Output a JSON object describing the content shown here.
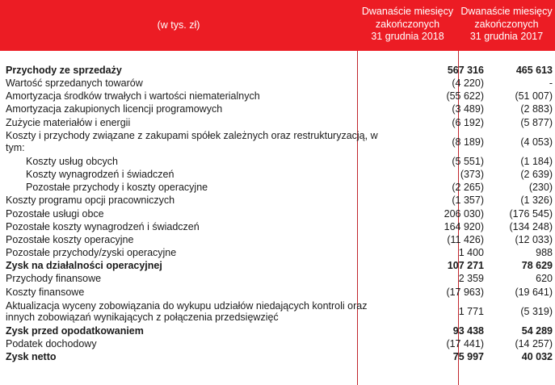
{
  "header": {
    "unit": "(w tys. zł)",
    "col1": [
      "Dwanaście miesięcy",
      "zakończonych",
      "31 grudnia 2018"
    ],
    "col2": [
      "Dwanaście miesięcy",
      "zakończonych",
      "31 grudnia 2017"
    ]
  },
  "rows": [
    {
      "label": "Przychody ze sprzedaży",
      "v2018": "567 316",
      "v2017": "465 613",
      "bold": true
    },
    {
      "label": "Wartość sprzedanych towarów",
      "v2018": "(4 220)",
      "v2017": "-"
    },
    {
      "label": "Amortyzacja środków trwałych i wartości niematerialnych",
      "v2018": "(55 622)",
      "v2017": "(51 007)"
    },
    {
      "label": "Amortyzacja zakupionych licencji programowych",
      "v2018": "(3 489)",
      "v2017": "(2 883)"
    },
    {
      "label": "Zużycie materiałów i energii",
      "v2018": "(6 192)",
      "v2017": "(5 877)"
    },
    {
      "label": "Koszty i przychody związane z zakupami spółek zależnych oraz restrukturyzacją, w tym:",
      "v2018": "(8 189)",
      "v2017": "(4 053)",
      "double": true
    },
    {
      "label": "Koszty usług obcych",
      "v2018": "(5 551)",
      "v2017": "(1 184)",
      "indent": true
    },
    {
      "label": "Koszty wynagrodzeń i świadczeń",
      "v2018": "(373)",
      "v2017": "(2 639)",
      "indent": true
    },
    {
      "label": "Pozostałe przychody i koszty operacyjne",
      "v2018": "(2 265)",
      "v2017": "(230)",
      "indent": true
    },
    {
      "label": "Koszty programu opcji pracowniczych",
      "v2018": "(1 357)",
      "v2017": "(1 326)"
    },
    {
      "label": "Pozostałe usługi obce",
      "v2018": "206 030)",
      "v2017": "(176 545)"
    },
    {
      "label": "Pozostałe koszty wynagrodzeń i świadczeń",
      "v2018": "164 920)",
      "v2017": "(134 248)"
    },
    {
      "label": "Pozostałe koszty operacyjne",
      "v2018": "(11 426)",
      "v2017": "(12 033)"
    },
    {
      "label": "Pozostałe przychody/zyski operacyjne",
      "v2018": "1 400",
      "v2017": "988"
    },
    {
      "label": "Zysk na działalności operacyjnej",
      "v2018": "107 271",
      "v2017": "78 629",
      "bold": true
    },
    {
      "label": "Przychody finansowe",
      "v2018": "2 359",
      "v2017": "620"
    },
    {
      "label": "Koszty finansowe",
      "v2018": "(17 963)",
      "v2017": "(19 641)"
    },
    {
      "label": "Aktualizacja wyceny zobowiązania do wykupu udziałów niedających kontroli oraz innych zobowiązań wynikających z połączenia przedsięwzięć",
      "v2018": "1 771",
      "v2017": "(5 319)",
      "double": true
    },
    {
      "label": "Zysk przed opodatkowaniem",
      "v2018": "93 438",
      "v2017": "54 289",
      "bold": true
    },
    {
      "label": "Podatek dochodowy",
      "v2018": "(17 441)",
      "v2017": "(14 257)"
    },
    {
      "label": "Zysk netto",
      "v2018": "75 997",
      "v2017": "40 032",
      "bold": true
    }
  ]
}
